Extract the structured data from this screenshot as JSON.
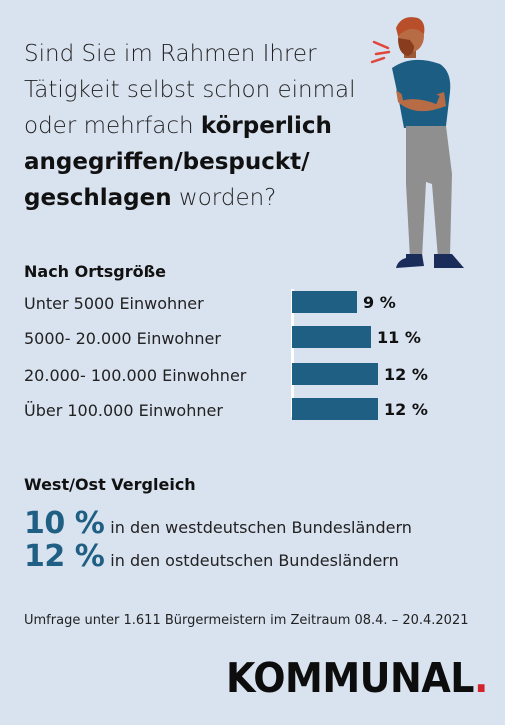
{
  "question": {
    "part1": "Sind Sie im Rahmen Ihrer Tätigkeit selbst schon einmal oder mehrfach ",
    "bold1": "körperlich angegriffen/bespuckt/ geschlagen",
    "part2": " worden?"
  },
  "section_ortsgroesse": "Nach Ortsgröße",
  "chart_data": {
    "type": "bar",
    "orientation": "horizontal",
    "title": "Nach Ortsgröße",
    "categories": [
      "Unter 5000 Einwohner",
      "5000- 20.000 Einwohner",
      "20.000- 100.000 Einwohner",
      "Über 100.000 Einwohner"
    ],
    "values": [
      9,
      11,
      12,
      12
    ],
    "value_labels": [
      "9 %",
      "11 %",
      "12 %",
      "12 %"
    ],
    "unit": "%",
    "bar_color": "#1e5f83"
  },
  "section_westost": "West/Ost Vergleich",
  "comparison": [
    {
      "pct": "10 %",
      "text": "in den westdeutschen Bundesländern"
    },
    {
      "pct": "12 %",
      "text": "in den ostdeutschen Bundesländern"
    }
  ],
  "footnote": "Umfrage unter 1.611 Bürgermeistern im Zeitraum 08.4. – 20.4.2021",
  "logo": {
    "text": "KOMMUNAL",
    "dot": ".",
    "dot_color": "#d3232d"
  },
  "colors": {
    "background": "#d9e2ef",
    "accent": "#1e5f83"
  }
}
